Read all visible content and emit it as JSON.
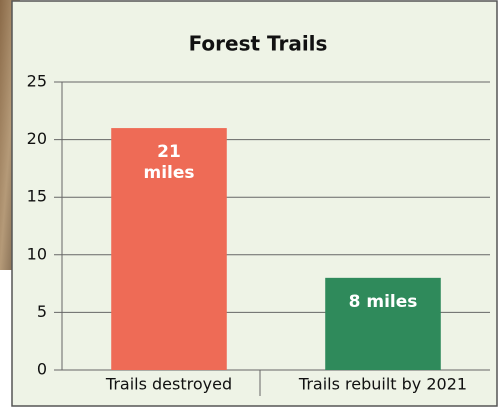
{
  "chart_data": {
    "type": "bar",
    "title": "Forest Trails",
    "categories": [
      "Trails destroyed",
      "Trails rebuilt by 2021"
    ],
    "values": [
      21,
      8
    ],
    "value_labels": [
      "21 miles",
      "8 miles"
    ],
    "colors": [
      "#ee6b56",
      "#2f8a5b"
    ],
    "ylim": [
      0,
      25
    ],
    "yticks": [
      0,
      5,
      10,
      15,
      20,
      25
    ],
    "grid": true
  }
}
